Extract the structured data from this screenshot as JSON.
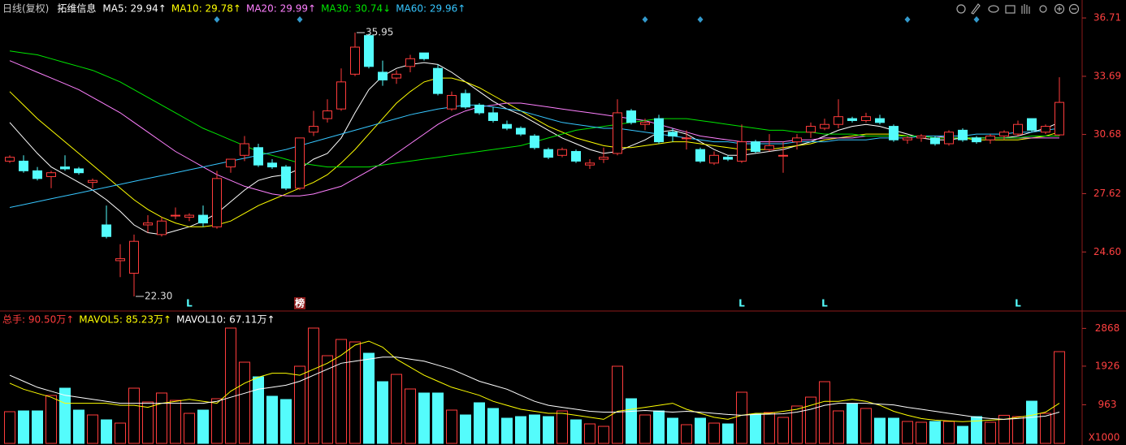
{
  "chart_data": [
    {
      "type": "candlestick",
      "title": "日线(复权)",
      "subtitle": "拓维信息",
      "up_color": "#ff3c3c",
      "down_color": "#54fcfc",
      "open": [
        29.3,
        29.3,
        28.8,
        28.5,
        29.0,
        28.9,
        28.2,
        26.0,
        24.15,
        23.5,
        26.0,
        25.5,
        26.5,
        26.4,
        26.5,
        25.9,
        29.0,
        29.6,
        30.0,
        29.2,
        29.0,
        27.9,
        30.8,
        31.5,
        32.0,
        33.8,
        35.8,
        33.9,
        33.6,
        34.2,
        34.9,
        34.1,
        32.0,
        32.8,
        32.2,
        31.8,
        31.2,
        31.0,
        30.6,
        29.9,
        29.6,
        29.8,
        29.1,
        29.4,
        29.7,
        31.9,
        31.2,
        31.5,
        30.8,
        30.5,
        29.9,
        29.2,
        29.5,
        29.3,
        30.3,
        29.9,
        29.6,
        30.3,
        30.8,
        31.0,
        31.2,
        31.5,
        31.4,
        31.5,
        31.1,
        30.4,
        30.5,
        30.5,
        30.2,
        30.9,
        30.5,
        30.4,
        30.6,
        30.7,
        31.5,
        30.8,
        30.66
      ],
      "high": [
        29.6,
        29.6,
        29.0,
        28.8,
        29.6,
        29.0,
        28.4,
        27.0,
        25.0,
        25.5,
        26.5,
        26.4,
        26.9,
        26.6,
        27.0,
        28.8,
        29.4,
        30.6,
        30.2,
        29.4,
        29.1,
        30.5,
        31.9,
        32.5,
        34.1,
        35.95,
        35.9,
        34.5,
        34.0,
        34.8,
        34.9,
        34.3,
        32.9,
        33.0,
        32.3,
        32.1,
        31.4,
        31.1,
        30.7,
        30.0,
        30.0,
        29.9,
        29.4,
        30.0,
        32.5,
        32.0,
        31.5,
        31.7,
        31.0,
        30.9,
        30.0,
        29.8,
        29.6,
        31.2,
        30.4,
        30.7,
        30.3,
        30.7,
        31.3,
        31.5,
        32.5,
        31.6,
        31.8,
        31.7,
        31.2,
        30.6,
        30.7,
        30.6,
        30.9,
        31.0,
        30.6,
        30.7,
        30.9,
        31.4,
        31.5,
        31.2,
        33.64
      ],
      "low": [
        29.2,
        28.7,
        28.3,
        27.9,
        28.8,
        28.6,
        27.9,
        25.3,
        23.3,
        22.3,
        25.6,
        25.4,
        26.3,
        26.2,
        25.9,
        25.8,
        28.7,
        29.3,
        29.0,
        28.9,
        27.8,
        27.8,
        30.6,
        31.3,
        31.9,
        33.7,
        34.1,
        33.2,
        33.3,
        33.9,
        34.5,
        32.7,
        31.9,
        32.0,
        31.7,
        31.3,
        30.9,
        30.6,
        29.9,
        29.4,
        29.5,
        29.2,
        28.9,
        29.2,
        29.6,
        31.2,
        30.9,
        30.2,
        30.3,
        29.9,
        29.2,
        29.1,
        29.3,
        29.2,
        29.7,
        29.8,
        28.7,
        29.9,
        30.5,
        30.9,
        31.0,
        31.3,
        31.3,
        31.2,
        30.3,
        30.2,
        30.3,
        30.1,
        30.1,
        30.3,
        30.2,
        30.2,
        30.4,
        30.6,
        30.8,
        30.7,
        30.6
      ],
      "close": [
        29.5,
        28.8,
        28.4,
        28.7,
        28.9,
        28.7,
        28.3,
        25.4,
        24.25,
        25.15,
        26.1,
        26.2,
        26.5,
        26.5,
        26.1,
        28.4,
        29.4,
        30.2,
        29.1,
        29.0,
        27.9,
        30.5,
        31.1,
        31.9,
        33.4,
        35.2,
        34.2,
        33.5,
        33.8,
        34.6,
        34.6,
        32.8,
        32.7,
        32.1,
        31.8,
        31.4,
        31.0,
        30.7,
        30.0,
        29.5,
        29.9,
        29.3,
        29.2,
        29.5,
        31.8,
        31.3,
        31.3,
        30.3,
        30.6,
        30.5,
        29.3,
        29.6,
        29.4,
        30.3,
        29.8,
        30.1,
        29.6,
        30.5,
        31.1,
        31.2,
        31.6,
        31.4,
        31.6,
        31.3,
        30.4,
        30.5,
        30.6,
        30.2,
        30.8,
        30.4,
        30.3,
        30.6,
        30.8,
        31.2,
        30.9,
        31.1,
        32.34
      ],
      "series": [
        {
          "name": "MA5: 29.94↑",
          "color": "#ffffff",
          "values": [
            31.3,
            30.5,
            29.7,
            29.0,
            28.6,
            28.2,
            27.8,
            27.3,
            26.7,
            26.0,
            25.6,
            25.5,
            25.7,
            25.9,
            26.2,
            26.6,
            27.2,
            27.8,
            28.3,
            28.5,
            28.6,
            28.9,
            29.4,
            29.7,
            30.5,
            31.8,
            33.0,
            33.7,
            34.1,
            34.3,
            34.4,
            34.3,
            33.9,
            33.4,
            32.9,
            32.4,
            32.0,
            31.7,
            31.3,
            30.9,
            30.5,
            30.2,
            29.9,
            29.7,
            29.8,
            30.1,
            30.4,
            30.8,
            30.9,
            30.7,
            30.3,
            29.9,
            29.6,
            29.6,
            29.7,
            29.8,
            29.9,
            30.1,
            30.3,
            30.6,
            30.9,
            31.1,
            31.2,
            31.1,
            30.9,
            30.7,
            30.5,
            30.4,
            30.4,
            30.5,
            30.5,
            30.5,
            30.5,
            30.6,
            30.8,
            31.0,
            31.3
          ]
        },
        {
          "name": "MA10: 29.78↑",
          "color": "#ffff00",
          "values": [
            32.9,
            32.2,
            31.5,
            30.9,
            30.3,
            29.7,
            29.1,
            28.5,
            27.9,
            27.3,
            26.8,
            26.4,
            26.1,
            25.9,
            25.9,
            26.0,
            26.2,
            26.6,
            27.0,
            27.3,
            27.6,
            27.9,
            28.2,
            28.6,
            29.2,
            29.9,
            30.7,
            31.5,
            32.3,
            32.9,
            33.4,
            33.6,
            33.6,
            33.4,
            33.1,
            32.7,
            32.3,
            31.9,
            31.5,
            31.1,
            30.8,
            30.5,
            30.3,
            30.1,
            30.0,
            30.0,
            30.1,
            30.2,
            30.3,
            30.3,
            30.2,
            30.1,
            30.0,
            29.9,
            29.9,
            29.9,
            30.0,
            30.1,
            30.2,
            30.4,
            30.5,
            30.6,
            30.7,
            30.7,
            30.7,
            30.6,
            30.6,
            30.5,
            30.5,
            30.5,
            30.4,
            30.4,
            30.4,
            30.4,
            30.5,
            30.6,
            30.8
          ]
        },
        {
          "name": "MA20: 29.99↑",
          "color": "#ff80ff",
          "values": [
            34.5,
            34.2,
            33.9,
            33.6,
            33.3,
            33.0,
            32.6,
            32.2,
            31.8,
            31.3,
            30.8,
            30.3,
            29.8,
            29.4,
            29.0,
            28.6,
            28.3,
            28.0,
            27.8,
            27.6,
            27.5,
            27.5,
            27.6,
            27.8,
            28.0,
            28.4,
            28.8,
            29.2,
            29.7,
            30.2,
            30.7,
            31.2,
            31.6,
            31.9,
            32.1,
            32.2,
            32.3,
            32.3,
            32.2,
            32.1,
            32.0,
            31.9,
            31.8,
            31.7,
            31.6,
            31.5,
            31.4,
            31.2,
            31.0,
            30.8,
            30.6,
            30.5,
            30.4,
            30.3,
            30.3,
            30.3,
            30.3,
            30.4,
            30.4,
            30.5,
            30.5,
            30.5,
            30.6,
            30.6,
            30.6,
            30.6,
            30.6,
            30.6,
            30.5,
            30.5,
            30.5,
            30.5,
            30.5,
            30.5,
            30.5,
            30.5,
            30.5
          ]
        },
        {
          "name": "MA30: 30.74↓",
          "color": "#00e600",
          "values": [
            35.0,
            34.9,
            34.8,
            34.6,
            34.4,
            34.2,
            34.0,
            33.7,
            33.4,
            33.0,
            32.6,
            32.2,
            31.8,
            31.4,
            31.0,
            30.7,
            30.4,
            30.1,
            29.8,
            29.6,
            29.4,
            29.2,
            29.1,
            29.0,
            29.0,
            29.0,
            29.0,
            29.1,
            29.2,
            29.3,
            29.4,
            29.5,
            29.6,
            29.7,
            29.8,
            29.9,
            30.0,
            30.1,
            30.3,
            30.5,
            30.7,
            30.9,
            31.0,
            31.1,
            31.2,
            31.3,
            31.4,
            31.5,
            31.5,
            31.5,
            31.4,
            31.3,
            31.2,
            31.1,
            31.0,
            30.9,
            30.9,
            30.8,
            30.8,
            30.7,
            30.7,
            30.7,
            30.6,
            30.6,
            30.6,
            30.6,
            30.6,
            30.5,
            30.5,
            30.5,
            30.5,
            30.5,
            30.5,
            30.5,
            30.6,
            30.6,
            30.6
          ]
        },
        {
          "name": "MA60: 29.96↑",
          "color": "#36c6ff",
          "values": [
            26.9,
            27.05,
            27.2,
            27.35,
            27.5,
            27.65,
            27.8,
            27.95,
            28.1,
            28.25,
            28.4,
            28.55,
            28.7,
            28.85,
            29.0,
            29.15,
            29.3,
            29.45,
            29.6,
            29.75,
            29.9,
            30.1,
            30.3,
            30.5,
            30.7,
            30.9,
            31.1,
            31.3,
            31.5,
            31.7,
            31.85,
            32.0,
            32.1,
            32.2,
            32.2,
            32.1,
            32.0,
            31.9,
            31.7,
            31.5,
            31.3,
            31.2,
            31.1,
            31.0,
            31.0,
            30.9,
            30.8,
            30.7,
            30.6,
            30.5,
            30.4,
            30.3,
            30.3,
            30.2,
            30.2,
            30.2,
            30.2,
            30.3,
            30.3,
            30.3,
            30.4,
            30.4,
            30.4,
            30.5,
            30.5,
            30.5,
            30.6,
            30.6,
            30.6,
            30.6,
            30.7,
            30.7,
            30.7,
            30.8,
            30.8,
            30.9,
            31.0
          ]
        }
      ],
      "ylim": [
        21.67,
        37.05
      ],
      "yticks": [
        36.71,
        33.69,
        30.68,
        27.62,
        {
          "value": 24.6,
          "label": "24.60"
        }
      ],
      "annotations": [
        {
          "x": 25,
          "value": 35.95
        },
        {
          "x": 9,
          "value": 22.3,
          "label": "22.30"
        }
      ],
      "event_markers": [
        15,
        21,
        46,
        50,
        65,
        70
      ],
      "bottom_labels": [
        {
          "x": 13,
          "text": "L"
        },
        {
          "x": 21,
          "text": "榜"
        },
        {
          "x": 53,
          "text": "L"
        },
        {
          "x": 59,
          "text": "L"
        },
        {
          "x": 73,
          "text": "L"
        }
      ]
    },
    {
      "type": "bar",
      "unit_label": "X1000",
      "series": [
        {
          "name": "总手: 90.50万↑",
          "color": "#ff3c3c",
          "values": [
            790,
            810,
            810,
            1195,
            1377,
            830,
            709,
            587,
            506,
            1377,
            1033,
            1256,
            1073,
            749,
            830,
            1114,
            2876,
            2025,
            1660,
            1175,
            1094,
            1924,
            2876,
            2187,
            2592,
            2531,
            2248,
            1539,
            1721,
            1357,
            1256,
            1256,
            830,
            709,
            1013,
            871,
            628,
            668,
            709,
            668,
            810,
            587,
            486,
            425,
            1924,
            1114,
            709,
            810,
            628,
            466,
            628,
            506,
            486,
            1276,
            729,
            770,
            648,
            932,
            1154,
            1539,
            810,
            992,
            871,
            628,
            628,
            547,
            527,
            547,
            547,
            425,
            668,
            527,
            700,
            668,
            1053,
            749,
            2288
          ]
        },
        {
          "name": "MAVOL5: 85.23万↑",
          "color": "#ffff00",
          "values": [
            1500,
            1350,
            1250,
            1150,
            1000,
            1000,
            1000,
            1000,
            950,
            950,
            900,
            1000,
            1050,
            1100,
            1050,
            1000,
            1300,
            1500,
            1650,
            1750,
            1750,
            1700,
            1850,
            2000,
            2200,
            2450,
            2550,
            2400,
            2100,
            1900,
            1700,
            1550,
            1400,
            1300,
            1200,
            1050,
            950,
            850,
            800,
            750,
            750,
            700,
            650,
            600,
            800,
            850,
            900,
            950,
            1000,
            850,
            750,
            650,
            600,
            700,
            750,
            750,
            800,
            850,
            950,
            1050,
            1050,
            1100,
            1050,
            950,
            800,
            700,
            620,
            580,
            560,
            540,
            560,
            580,
            600,
            650,
            700,
            780,
            1000
          ]
        },
        {
          "name": "MAVOL10: 67.11万↑",
          "color": "#ffffff",
          "values": [
            1700,
            1550,
            1400,
            1300,
            1200,
            1150,
            1100,
            1050,
            1000,
            1000,
            1000,
            1000,
            1000,
            1000,
            1000,
            1050,
            1150,
            1250,
            1350,
            1400,
            1450,
            1550,
            1700,
            1850,
            2000,
            2050,
            2100,
            2150,
            2150,
            2100,
            2050,
            1950,
            1850,
            1700,
            1550,
            1450,
            1350,
            1200,
            1050,
            950,
            900,
            850,
            800,
            780,
            780,
            800,
            820,
            800,
            780,
            800,
            780,
            750,
            720,
            700,
            720,
            730,
            740,
            780,
            850,
            950,
            1000,
            1000,
            1000,
            980,
            960,
            900,
            850,
            800,
            750,
            700,
            650,
            620,
            600,
            620,
            650,
            680,
            780
          ]
        }
      ],
      "ylim": [
        0,
        3200
      ],
      "yticks": [
        2868,
        1926,
        963
      ]
    }
  ]
}
